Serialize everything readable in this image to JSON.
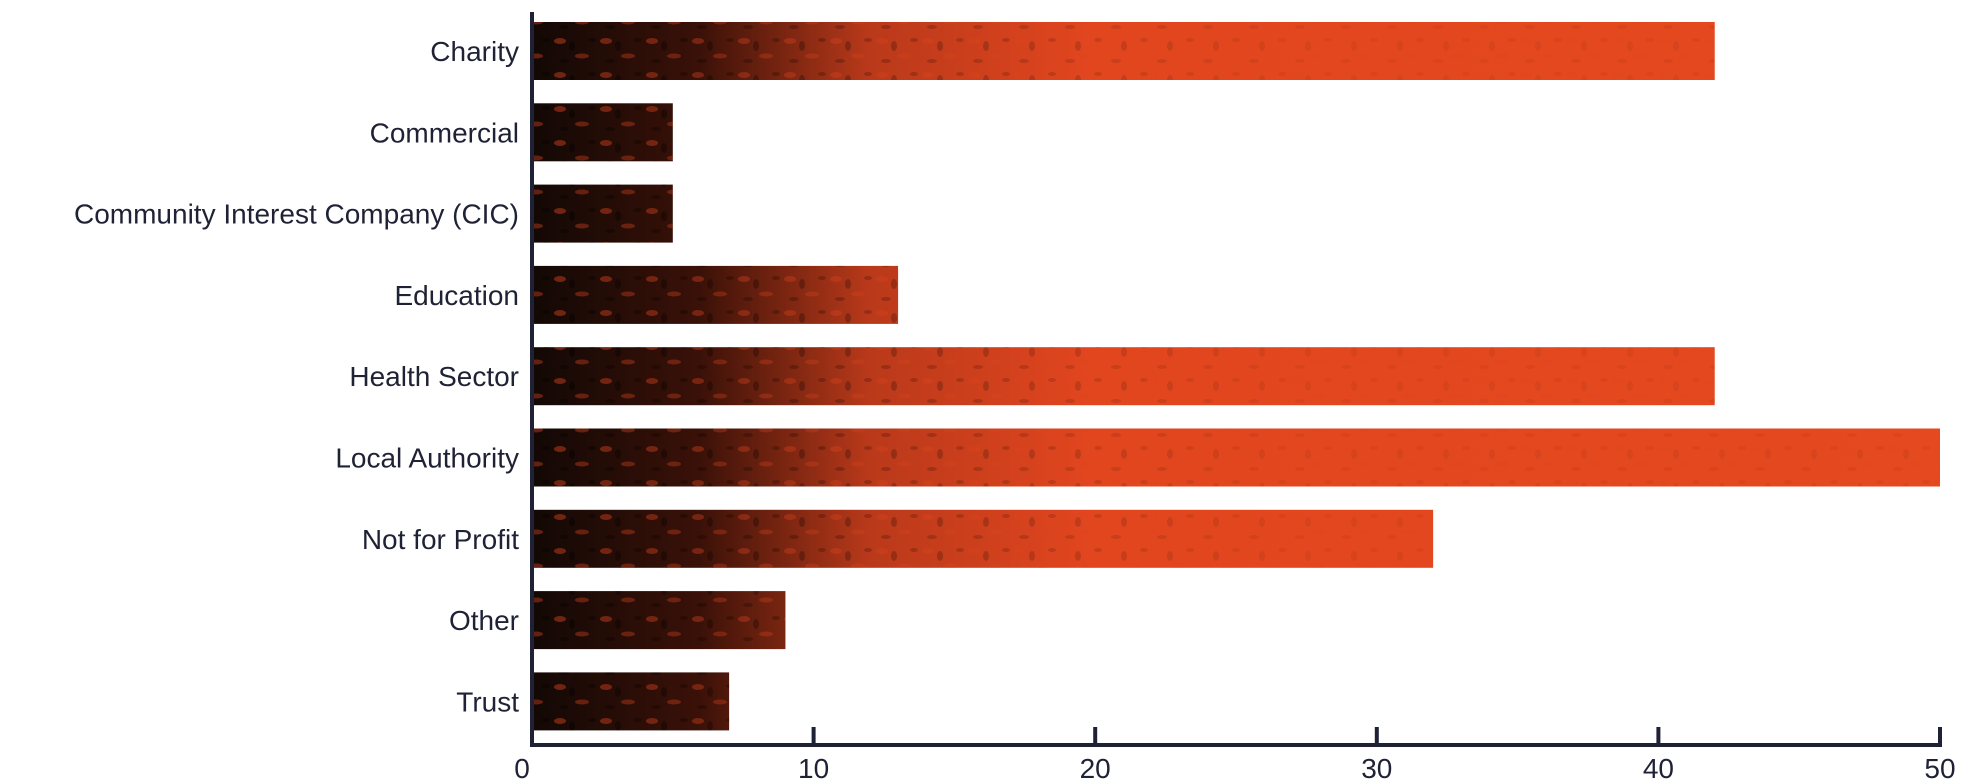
{
  "chart_data": {
    "type": "bar",
    "orientation": "horizontal",
    "categories": [
      "Charity",
      "Commercial",
      "Community Interest Company (CIC)",
      "Education",
      "Health Sector",
      "Local Authority",
      "Not for Profit",
      "Other",
      "Trust"
    ],
    "values": [
      42,
      5,
      5,
      13,
      42,
      50,
      32,
      9,
      7
    ],
    "title": "",
    "xlabel": "",
    "ylabel": "",
    "xlim": [
      0,
      50
    ],
    "xticks": [
      0,
      10,
      20,
      30,
      40,
      50
    ],
    "grid": false,
    "bar_fill": "photo texture (dark to orange)",
    "colors": {
      "bar_orange": "#e2461f",
      "bar_dark": "#120805",
      "axis": "#1f2235",
      "text": "#1f2235",
      "background": "#ffffff"
    }
  }
}
